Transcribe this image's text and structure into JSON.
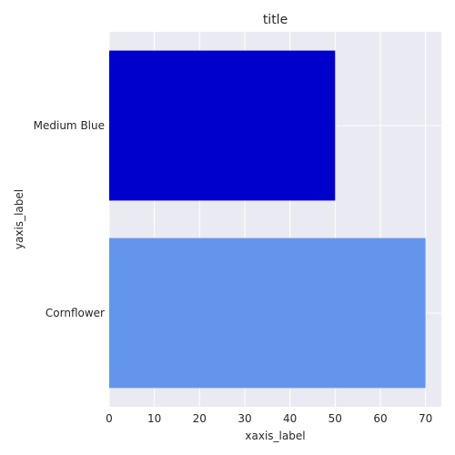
{
  "chart_data": {
    "type": "bar",
    "orientation": "horizontal",
    "title": "title",
    "xlabel": "xaxis_label",
    "ylabel": "yaxis_label",
    "categories": [
      "Medium Blue",
      "Cornflower"
    ],
    "values": [
      50,
      70
    ],
    "colors": [
      "#0000cd",
      "#6495ed"
    ],
    "xlim": [
      0,
      73.5
    ],
    "xticks": [
      0,
      10,
      20,
      30,
      40,
      50,
      60,
      70
    ],
    "grid": true,
    "background": "#eaeaf2",
    "grid_color": "#ffffff"
  }
}
